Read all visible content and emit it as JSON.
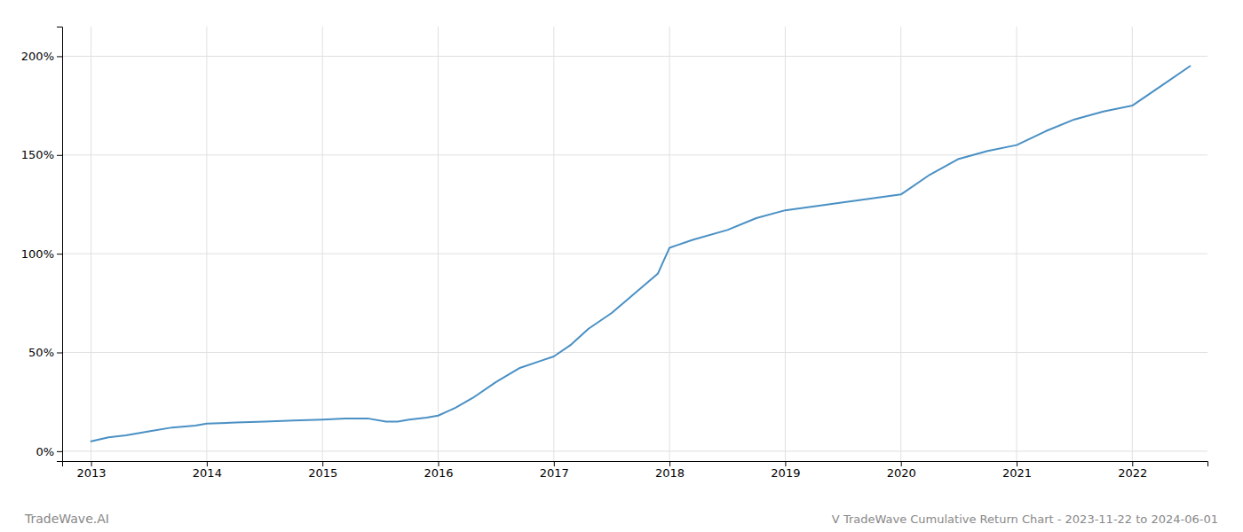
{
  "chart_data": {
    "type": "line",
    "title": "V TradeWave Cumulative Return Chart - 2023-11-22 to 2024-06-01",
    "annotations": [
      "TradeWave.AI"
    ],
    "color": "#4a90c4",
    "x": [
      2013.0,
      2013.15,
      2013.3,
      2013.5,
      2013.7,
      2013.9,
      2014.0,
      2014.25,
      2014.5,
      2014.75,
      2015.0,
      2015.2,
      2015.4,
      2015.55,
      2015.65,
      2015.75,
      2015.9,
      2016.0,
      2016.15,
      2016.3,
      2016.5,
      2016.7,
      2016.9,
      2017.0,
      2017.15,
      2017.3,
      2017.5,
      2017.7,
      2017.9,
      2018.0,
      2018.2,
      2018.5,
      2018.75,
      2019.0,
      2019.25,
      2019.5,
      2019.75,
      2020.0,
      2020.25,
      2020.5,
      2020.75,
      2021.0,
      2021.25,
      2021.5,
      2021.75,
      2022.0,
      2022.25,
      2022.5
    ],
    "values": [
      5,
      7,
      8,
      10,
      12,
      13,
      14,
      14.5,
      15,
      15.5,
      16,
      16.5,
      16.5,
      15,
      15,
      16,
      17,
      18,
      22,
      27,
      35,
      42,
      46,
      48,
      54,
      62,
      70,
      80,
      90,
      103,
      107,
      112,
      118,
      122,
      124,
      126,
      128,
      130,
      140,
      148,
      152,
      155,
      162,
      168,
      172,
      175,
      185,
      195
    ],
    "xlim": [
      2012.75,
      2022.65
    ],
    "xticks": [
      2013,
      2014,
      2015,
      2016,
      2017,
      2018,
      2019,
      2020,
      2021,
      2022
    ],
    "ylim": [
      -5,
      215
    ],
    "yticks": [
      {
        "value": 0,
        "label": "0%"
      },
      {
        "value": 50,
        "label": "50%"
      },
      {
        "value": 100,
        "label": "100%"
      },
      {
        "value": 150,
        "label": "150%"
      },
      {
        "value": 200,
        "label": "200%"
      }
    ],
    "grid": true
  }
}
